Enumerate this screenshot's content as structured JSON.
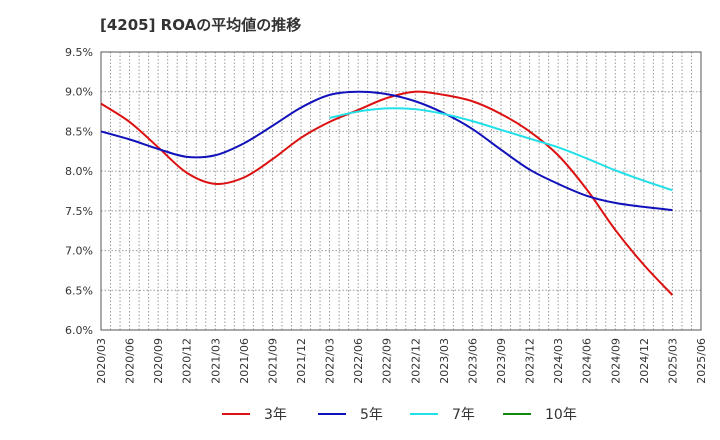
{
  "chart_data": {
    "type": "line",
    "title": "[4205]  ROAの平均値の推移",
    "xlabel": "",
    "ylabel": "",
    "ylim": [
      6.0,
      9.5
    ],
    "y_ticks": [
      "6.0%",
      "6.5%",
      "7.0%",
      "7.5%",
      "8.0%",
      "8.5%",
      "9.0%",
      "9.5%"
    ],
    "y_tick_values": [
      6.0,
      6.5,
      7.0,
      7.5,
      8.0,
      8.5,
      9.0,
      9.5
    ],
    "categories": [
      "2020/03",
      "2020/06",
      "2020/09",
      "2020/12",
      "2021/03",
      "2021/06",
      "2021/09",
      "2021/12",
      "2022/03",
      "2022/06",
      "2022/09",
      "2022/12",
      "2023/03",
      "2023/06",
      "2023/09",
      "2023/12",
      "2024/03",
      "2024/06",
      "2024/09",
      "2024/12",
      "2025/03",
      "2025/06"
    ],
    "grid": true,
    "legend_position": "bottom",
    "series": [
      {
        "name": "3年",
        "color": "#dd1111",
        "values": [
          8.85,
          8.62,
          8.3,
          7.98,
          7.84,
          7.92,
          8.15,
          8.42,
          8.62,
          8.77,
          8.92,
          9.0,
          8.96,
          8.88,
          8.72,
          8.5,
          8.2,
          7.77,
          7.26,
          6.82,
          6.44,
          null
        ]
      },
      {
        "name": "5年",
        "color": "#1111bb",
        "values": [
          8.5,
          8.4,
          8.28,
          8.18,
          8.2,
          8.35,
          8.57,
          8.8,
          8.96,
          9.0,
          8.97,
          8.88,
          8.73,
          8.53,
          8.27,
          8.02,
          7.84,
          7.69,
          7.6,
          7.55,
          7.51,
          null
        ]
      },
      {
        "name": "7年",
        "color": "#22e0e8",
        "values": [
          null,
          null,
          null,
          null,
          null,
          null,
          null,
          null,
          8.67,
          8.75,
          8.79,
          8.78,
          8.72,
          8.63,
          8.52,
          8.41,
          8.3,
          8.16,
          8.01,
          7.88,
          7.76,
          null
        ]
      },
      {
        "name": "10年",
        "color": "#118811",
        "values": [
          null,
          null,
          null,
          null,
          null,
          null,
          null,
          null,
          null,
          null,
          null,
          null,
          null,
          null,
          null,
          null,
          null,
          null,
          null,
          null,
          null,
          null
        ]
      }
    ]
  }
}
